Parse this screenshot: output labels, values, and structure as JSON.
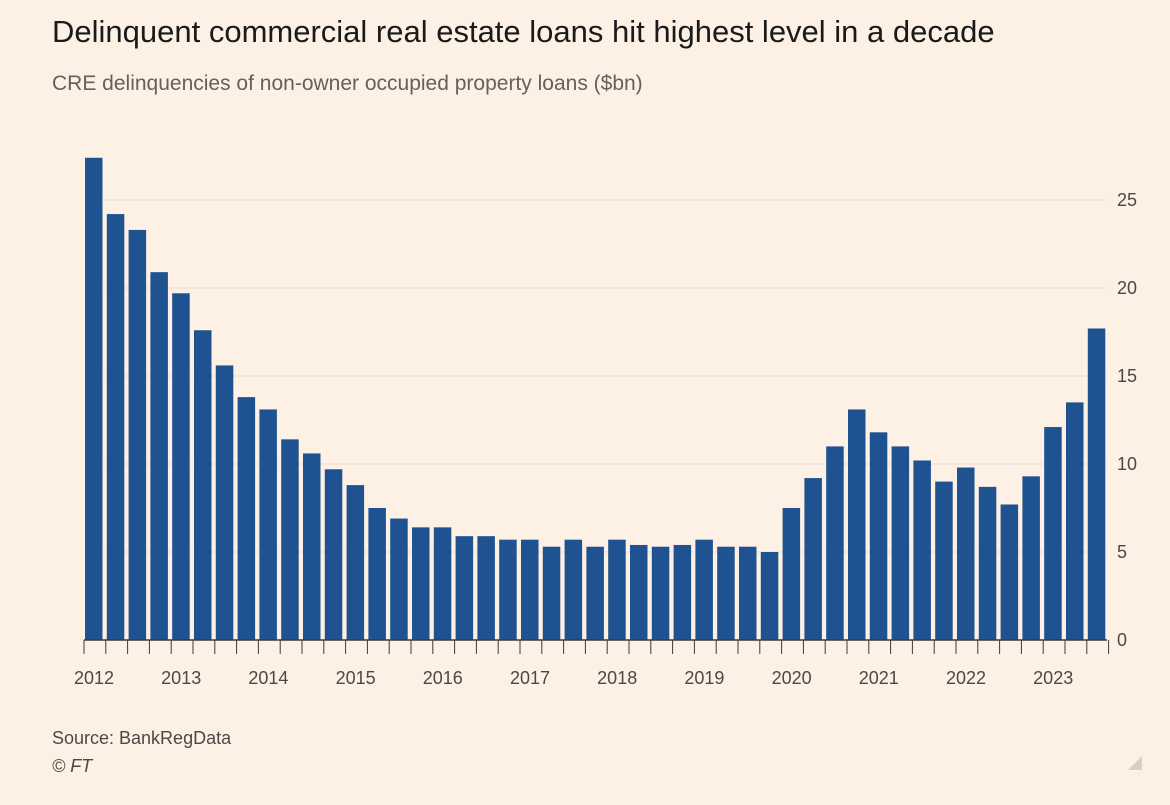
{
  "title": "Delinquent commercial real estate loans hit highest level in a decade",
  "subtitle": "CRE delinquencies of non-owner occupied property loans ($bn)",
  "source": "Source: BankRegData",
  "copyright": "© FT",
  "colors": {
    "background": "#fdf1e5",
    "bar": "#1f5290",
    "gridline": "#e8ddd2",
    "axis": "#3a3a3a"
  },
  "chart_data": {
    "type": "bar",
    "ylim": [
      0,
      27.5
    ],
    "y_ticks": [
      0,
      5,
      10,
      15,
      20,
      25
    ],
    "y_axis_side": "right",
    "x_tick_labels": [
      "2012",
      "2013",
      "2014",
      "2015",
      "2016",
      "2017",
      "2018",
      "2019",
      "2020",
      "2021",
      "2022",
      "2023"
    ],
    "categories": [
      "2012 Q1",
      "2012 Q2",
      "2012 Q3",
      "2012 Q4",
      "2013 Q1",
      "2013 Q2",
      "2013 Q3",
      "2013 Q4",
      "2014 Q1",
      "2014 Q2",
      "2014 Q3",
      "2014 Q4",
      "2015 Q1",
      "2015 Q2",
      "2015 Q3",
      "2015 Q4",
      "2016 Q1",
      "2016 Q2",
      "2016 Q3",
      "2016 Q4",
      "2017 Q1",
      "2017 Q2",
      "2017 Q3",
      "2017 Q4",
      "2018 Q1",
      "2018 Q2",
      "2018 Q3",
      "2018 Q4",
      "2019 Q1",
      "2019 Q2",
      "2019 Q3",
      "2019 Q4",
      "2020 Q1",
      "2020 Q2",
      "2020 Q3",
      "2020 Q4",
      "2021 Q1",
      "2021 Q2",
      "2021 Q3",
      "2021 Q4",
      "2022 Q1",
      "2022 Q2",
      "2022 Q3",
      "2022 Q4",
      "2023 Q1",
      "2023 Q2",
      "2023 Q3"
    ],
    "values": [
      27.4,
      24.2,
      23.3,
      20.9,
      19.7,
      17.6,
      15.6,
      13.8,
      13.1,
      11.4,
      10.6,
      9.7,
      8.8,
      7.5,
      6.9,
      6.4,
      6.4,
      5.9,
      5.9,
      5.7,
      5.7,
      5.3,
      5.7,
      5.3,
      5.7,
      5.4,
      5.3,
      5.4,
      5.7,
      5.3,
      5.3,
      5.0,
      7.5,
      9.2,
      11.0,
      13.1,
      11.8,
      11.0,
      10.2,
      9.0,
      9.8,
      8.7,
      7.7,
      9.3,
      12.1,
      13.5,
      17.7
    ]
  }
}
